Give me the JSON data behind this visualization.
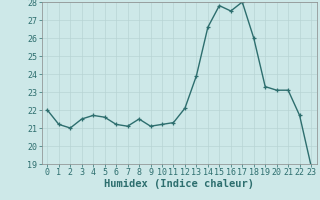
{
  "x": [
    0,
    1,
    2,
    3,
    4,
    5,
    6,
    7,
    8,
    9,
    10,
    11,
    12,
    13,
    14,
    15,
    16,
    17,
    18,
    19,
    20,
    21,
    22,
    23
  ],
  "y": [
    22.0,
    21.2,
    21.0,
    21.5,
    21.7,
    21.6,
    21.2,
    21.1,
    21.5,
    21.1,
    21.2,
    21.3,
    22.1,
    23.9,
    26.6,
    27.8,
    27.5,
    28.0,
    26.0,
    23.3,
    23.1,
    23.1,
    21.7,
    18.9
  ],
  "line_color": "#2d6e6e",
  "marker": "+",
  "marker_size": 3,
  "background_color": "#cde8e8",
  "grid_color": "#b8d4d4",
  "xlabel": "Humidex (Indice chaleur)",
  "ylim": [
    19,
    28
  ],
  "xlim": [
    -0.5,
    23.5
  ],
  "yticks": [
    19,
    20,
    21,
    22,
    23,
    24,
    25,
    26,
    27,
    28
  ],
  "xticks": [
    0,
    1,
    2,
    3,
    4,
    5,
    6,
    7,
    8,
    9,
    10,
    11,
    12,
    13,
    14,
    15,
    16,
    17,
    18,
    19,
    20,
    21,
    22,
    23
  ],
  "tick_label_fontsize": 6,
  "xlabel_fontsize": 7.5,
  "line_width": 1.0
}
